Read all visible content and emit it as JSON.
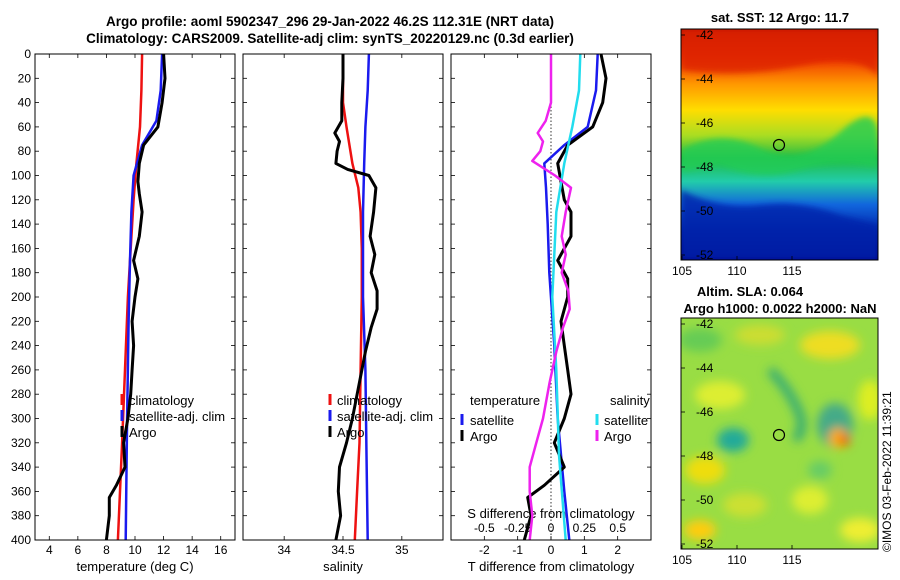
{
  "header": {
    "line1": "Argo profile: aoml 5902347_296 29-Jan-2022 46.2S 112.31E (NRT data)",
    "line2": "Climatology: CARS2009. Satellite-adj clim: synTS_20220129.nc (0.3d earlier)"
  },
  "colors": {
    "climatology": "#ee1111",
    "satellite": "#1a1aee",
    "argo": "#000000",
    "satellite_salinity": "#22ddee",
    "argo_salinity": "#ee22ee",
    "marker": "#000000"
  },
  "map_sst": {
    "title": "sat. SST: 12 Argo: 11.7",
    "x_ticks": [
      "105",
      "110",
      "115"
    ],
    "y_ticks": [
      "-42",
      "-44",
      "-46",
      "-48",
      "-50",
      "-52"
    ]
  },
  "map_sla": {
    "title1": "Altim. SLA: 0.064",
    "title2": "Argo h1000: 0.0022 h2000: NaN",
    "x_ticks": [
      "105",
      "110",
      "115"
    ],
    "y_ticks": [
      "-42",
      "-44",
      "-46",
      "-48",
      "-50",
      "-52"
    ]
  },
  "copyright": "©IMOS 03-Feb-2022 11:39:21",
  "chart_data": [
    {
      "type": "line",
      "name": "temperature",
      "xlabel": "temperature (deg C)",
      "ylabel": "",
      "xlim": [
        3,
        17
      ],
      "ylim": [
        400,
        0
      ],
      "x_ticks": [
        4,
        6,
        8,
        10,
        12,
        14,
        16
      ],
      "y_ticks": [
        0,
        20,
        40,
        60,
        80,
        100,
        120,
        140,
        160,
        180,
        200,
        220,
        240,
        260,
        280,
        300,
        320,
        340,
        360,
        380,
        400
      ],
      "legend": [
        "climatology",
        "satellite-adj. clim",
        "Argo"
      ],
      "series": [
        {
          "name": "climatology",
          "color_key": "climatology",
          "points": [
            [
              10.5,
              0
            ],
            [
              10.45,
              30
            ],
            [
              10.35,
              60
            ],
            [
              10.1,
              90
            ],
            [
              9.9,
              120
            ],
            [
              9.7,
              160
            ],
            [
              9.5,
              200
            ],
            [
              9.3,
              260
            ],
            [
              9.1,
              320
            ],
            [
              8.95,
              360
            ],
            [
              8.8,
              400
            ]
          ]
        },
        {
          "name": "satellite-adj. clim",
          "color_key": "satellite",
          "points": [
            [
              11.9,
              0
            ],
            [
              11.8,
              30
            ],
            [
              11.5,
              55
            ],
            [
              10.5,
              75
            ],
            [
              9.9,
              100
            ],
            [
              9.75,
              130
            ],
            [
              9.65,
              170
            ],
            [
              9.55,
              220
            ],
            [
              9.45,
              300
            ],
            [
              9.35,
              400
            ]
          ]
        },
        {
          "name": "Argo",
          "color_key": "argo",
          "points": [
            [
              12.0,
              0
            ],
            [
              12.1,
              20
            ],
            [
              11.9,
              40
            ],
            [
              11.6,
              60
            ],
            [
              10.6,
              75
            ],
            [
              10.3,
              90
            ],
            [
              10.2,
              105
            ],
            [
              10.3,
              115
            ],
            [
              10.5,
              130
            ],
            [
              10.3,
              150
            ],
            [
              9.9,
              170
            ],
            [
              10.2,
              185
            ],
            [
              10.0,
              200
            ],
            [
              9.8,
              220
            ],
            [
              9.9,
              240
            ],
            [
              9.8,
              260
            ],
            [
              9.7,
              280
            ],
            [
              9.5,
              300
            ],
            [
              9.2,
              320
            ],
            [
              9.3,
              340
            ],
            [
              8.7,
              355
            ],
            [
              8.2,
              365
            ],
            [
              8.2,
              380
            ],
            [
              8.0,
              400
            ]
          ]
        }
      ]
    },
    {
      "type": "line",
      "name": "salinity",
      "xlabel": "salinity",
      "ylabel": "",
      "xlim": [
        33.65,
        35.35
      ],
      "ylim": [
        400,
        0
      ],
      "x_ticks": [
        34,
        34.5,
        35
      ],
      "x_tick_labels": [
        "34",
        "34.5",
        "35"
      ],
      "legend": [
        "climatology",
        "satellite-adj. clim",
        "Argo"
      ],
      "series": [
        {
          "name": "climatology",
          "color_key": "climatology",
          "points": [
            [
              34.5,
              0
            ],
            [
              34.5,
              40
            ],
            [
              34.53,
              60
            ],
            [
              34.58,
              90
            ],
            [
              34.63,
              110
            ],
            [
              34.65,
              130
            ],
            [
              34.66,
              160
            ],
            [
              34.66,
              200
            ],
            [
              34.65,
              260
            ],
            [
              34.64,
              320
            ],
            [
              34.62,
              360
            ],
            [
              34.6,
              400
            ]
          ]
        },
        {
          "name": "satellite-adj. clim",
          "color_key": "satellite",
          "points": [
            [
              34.72,
              0
            ],
            [
              34.71,
              30
            ],
            [
              34.69,
              60
            ],
            [
              34.68,
              90
            ],
            [
              34.67,
              130
            ],
            [
              34.67,
              200
            ],
            [
              34.69,
              260
            ],
            [
              34.7,
              330
            ],
            [
              34.71,
              400
            ]
          ]
        },
        {
          "name": "Argo",
          "color_key": "argo",
          "points": [
            [
              34.5,
              0
            ],
            [
              34.5,
              20
            ],
            [
              34.49,
              40
            ],
            [
              34.49,
              55
            ],
            [
              34.43,
              65
            ],
            [
              34.47,
              72
            ],
            [
              34.45,
              80
            ],
            [
              34.44,
              90
            ],
            [
              34.54,
              95
            ],
            [
              34.72,
              100
            ],
            [
              34.78,
              110
            ],
            [
              34.76,
              130
            ],
            [
              34.73,
              150
            ],
            [
              34.77,
              165
            ],
            [
              34.74,
              180
            ],
            [
              34.79,
              195
            ],
            [
              34.79,
              210
            ],
            [
              34.74,
              225
            ],
            [
              34.69,
              245
            ],
            [
              34.64,
              270
            ],
            [
              34.58,
              300
            ],
            [
              34.53,
              320
            ],
            [
              34.47,
              340
            ],
            [
              34.46,
              360
            ],
            [
              34.48,
              380
            ],
            [
              34.44,
              400
            ]
          ]
        }
      ]
    },
    {
      "type": "line",
      "name": "differences",
      "xlabel": "T difference from climatology",
      "top_label": "S difference from climatology",
      "xlim": [
        -3,
        3
      ],
      "ylim": [
        400,
        0
      ],
      "x_ticks": [
        -2,
        -1,
        0,
        1,
        2
      ],
      "x_tick_labels": [
        "-2",
        "-1",
        "0",
        "1",
        "2"
      ],
      "s_ticks": [
        -0.5,
        -0.25,
        0,
        0.25,
        0.5
      ],
      "s_tick_labels": [
        "-0.5",
        "-0.25",
        "0",
        "0.25",
        "0.5"
      ],
      "s_scale": 0.25,
      "legend_titles": [
        "temperature",
        "salinity"
      ],
      "legend": [
        "satellite",
        "Argo",
        "satellite",
        "Argo"
      ],
      "series": [
        {
          "name": "temperature satellite",
          "color_key": "satellite",
          "points": [
            [
              1.4,
              0
            ],
            [
              1.35,
              30
            ],
            [
              1.1,
              60
            ],
            [
              0.4,
              75
            ],
            [
              -0.2,
              90
            ],
            [
              -0.15,
              110
            ],
            [
              -0.1,
              140
            ],
            [
              -0.05,
              180
            ],
            [
              0.1,
              240
            ],
            [
              0.2,
              300
            ],
            [
              0.4,
              360
            ],
            [
              0.55,
              400
            ]
          ]
        },
        {
          "name": "temperature Argo",
          "color_key": "argo",
          "points": [
            [
              1.5,
              0
            ],
            [
              1.65,
              20
            ],
            [
              1.55,
              40
            ],
            [
              1.25,
              60
            ],
            [
              0.5,
              75
            ],
            [
              0.2,
              90
            ],
            [
              0.3,
              105
            ],
            [
              0.4,
              120
            ],
            [
              0.6,
              130
            ],
            [
              0.6,
              150
            ],
            [
              0.2,
              170
            ],
            [
              0.5,
              185
            ],
            [
              0.5,
              200
            ],
            [
              0.3,
              220
            ],
            [
              0.4,
              240
            ],
            [
              0.5,
              260
            ],
            [
              0.6,
              280
            ],
            [
              0.4,
              300
            ],
            [
              0.1,
              320
            ],
            [
              0.4,
              340
            ],
            [
              -0.2,
              355
            ],
            [
              -0.7,
              365
            ],
            [
              -0.6,
              380
            ],
            [
              -0.8,
              400
            ]
          ]
        },
        {
          "name": "salinity satellite",
          "color_key": "satellite_salinity",
          "points": [
            [
              0.22,
              0
            ],
            [
              0.21,
              30
            ],
            [
              0.16,
              60
            ],
            [
              0.1,
              90
            ],
            [
              0.04,
              130
            ],
            [
              0.01,
              200
            ],
            [
              0.04,
              260
            ],
            [
              0.06,
              330
            ],
            [
              0.11,
              400
            ]
          ]
        },
        {
          "name": "salinity Argo",
          "color_key": "argo_salinity",
          "points": [
            [
              0,
              0
            ],
            [
              0,
              40
            ],
            [
              -0.04,
              55
            ],
            [
              -0.1,
              65
            ],
            [
              -0.06,
              72
            ],
            [
              -0.08,
              80
            ],
            [
              -0.14,
              88
            ],
            [
              0.03,
              100
            ],
            [
              0.15,
              110
            ],
            [
              0.11,
              130
            ],
            [
              0.08,
              150
            ],
            [
              0.11,
              165
            ],
            [
              0.08,
              180
            ],
            [
              0.13,
              195
            ],
            [
              0.14,
              210
            ],
            [
              0.09,
              225
            ],
            [
              0.04,
              245
            ],
            [
              -0.01,
              270
            ],
            [
              -0.06,
              300
            ],
            [
              -0.11,
              320
            ],
            [
              -0.16,
              340
            ],
            [
              -0.16,
              360
            ],
            [
              -0.14,
              380
            ],
            [
              -0.16,
              400
            ]
          ]
        }
      ]
    }
  ]
}
